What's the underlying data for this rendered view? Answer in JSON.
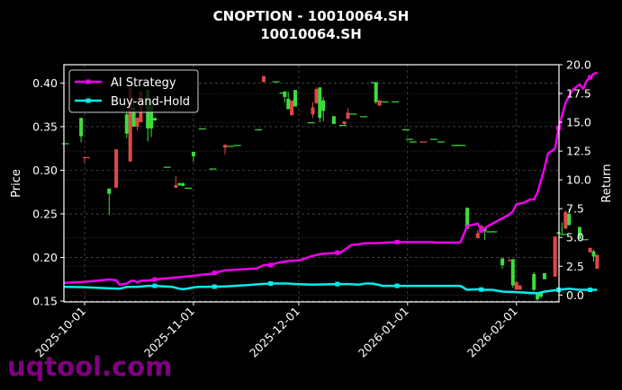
{
  "title": {
    "line1": "CNOPTION - 10010064.SH",
    "line2": "10010064.SH"
  },
  "watermark": "uqtool.com",
  "colors": {
    "background": "#000000",
    "up": "#3ddc3d",
    "down": "#e04848",
    "ai_strategy": "#ee00ee",
    "buy_and_hold": "#00eeee",
    "grid": "#555555",
    "axis": "#ffffff"
  },
  "chart_data": {
    "type": "candlestick+line",
    "title": "CNOPTION - 10010064.SH\n10010064.SH",
    "xlabel": "",
    "ylabel": "Price",
    "y2label": "Return",
    "ylim": [
      0.149,
      0.421
    ],
    "y2lim": [
      -0.6,
      20.0
    ],
    "xticks": [
      "2025-10-01",
      "2025-11-01",
      "2025-12-01",
      "2026-01-01",
      "2026-02-01"
    ],
    "yticks": [
      "0.15",
      "0.20",
      "0.25",
      "0.30",
      "0.35",
      "0.40"
    ],
    "y2ticks": [
      "0.0",
      "2.5",
      "5.0",
      "7.5",
      "10.0",
      "12.5",
      "15.0",
      "17.5",
      "20.0"
    ],
    "grid": true,
    "legend": {
      "position": "upper left",
      "entries": [
        "AI Strategy",
        "Buy-and-Hold"
      ]
    },
    "candles": [
      {
        "d": -6,
        "o": 0.331,
        "c": 0.331,
        "h": 0.331,
        "l": 0.331
      },
      {
        "d": -1,
        "o": 0.339,
        "c": 0.36,
        "h": 0.36,
        "l": 0.332
      },
      {
        "d": 0,
        "o": 0.315,
        "c": 0.314,
        "h": 0.316,
        "l": 0.308
      },
      {
        "d": 7,
        "o": 0.273,
        "c": 0.279,
        "h": 0.279,
        "l": 0.249
      },
      {
        "d": 9,
        "o": 0.324,
        "c": 0.28,
        "h": 0.324,
        "l": 0.28
      },
      {
        "d": 12,
        "o": 0.342,
        "c": 0.364,
        "h": 0.37,
        "l": 0.337
      },
      {
        "d": 13,
        "o": 0.395,
        "c": 0.31,
        "h": 0.397,
        "l": 0.31
      },
      {
        "d": 14,
        "o": 0.35,
        "c": 0.372,
        "h": 0.383,
        "l": 0.35
      },
      {
        "d": 15,
        "o": 0.36,
        "c": 0.35,
        "h": 0.361,
        "l": 0.346
      },
      {
        "d": 16,
        "o": 0.39,
        "c": 0.355,
        "h": 0.392,
        "l": 0.355
      },
      {
        "d": 18,
        "o": 0.348,
        "c": 0.392,
        "h": 0.393,
        "l": 0.333
      },
      {
        "d": 19,
        "o": 0.348,
        "c": 0.374,
        "h": 0.38,
        "l": 0.338
      },
      {
        "d": 20,
        "o": 0.357,
        "c": 0.36,
        "h": 0.36,
        "l": 0.357
      },
      {
        "d": 23,
        "o": 0.304,
        "c": 0.304,
        "h": 0.304,
        "l": 0.304
      },
      {
        "d": 26,
        "o": 0.283,
        "c": 0.28,
        "h": 0.293,
        "l": 0.28
      },
      {
        "d": 27,
        "o": 0.283,
        "c": 0.285,
        "h": 0.286,
        "l": 0.282
      },
      {
        "d": 28,
        "o": 0.282,
        "c": 0.285,
        "h": 0.286,
        "l": 0.282
      },
      {
        "d": 29,
        "o": 0.28,
        "c": 0.28,
        "h": 0.28,
        "l": 0.28
      },
      {
        "d": 31,
        "o": 0.316,
        "c": 0.321,
        "h": 0.321,
        "l": 0.31
      },
      {
        "d": 33,
        "o": 0.348,
        "c": 0.348,
        "h": 0.348,
        "l": 0.348
      },
      {
        "d": 36,
        "o": 0.302,
        "c": 0.302,
        "h": 0.302,
        "l": 0.302
      },
      {
        "d": 40,
        "o": 0.329,
        "c": 0.326,
        "h": 0.33,
        "l": 0.318
      },
      {
        "d": 41,
        "o": 0.328,
        "c": 0.328,
        "h": 0.328,
        "l": 0.328
      },
      {
        "d": 43,
        "o": 0.329,
        "c": 0.329,
        "h": 0.329,
        "l": 0.329
      },
      {
        "d": 49,
        "o": 0.347,
        "c": 0.347,
        "h": 0.347,
        "l": 0.347
      },
      {
        "d": 51,
        "o": 0.408,
        "c": 0.401,
        "h": 0.408,
        "l": 0.401
      },
      {
        "d": 54,
        "o": 0.402,
        "c": 0.402,
        "h": 0.402,
        "l": 0.402
      },
      {
        "d": 56,
        "o": 0.389,
        "c": 0.389,
        "h": 0.389,
        "l": 0.389
      },
      {
        "d": 57,
        "o": 0.384,
        "c": 0.39,
        "h": 0.391,
        "l": 0.378
      },
      {
        "d": 58,
        "o": 0.37,
        "c": 0.382,
        "h": 0.39,
        "l": 0.37
      },
      {
        "d": 59,
        "o": 0.38,
        "c": 0.363,
        "h": 0.38,
        "l": 0.363
      },
      {
        "d": 60,
        "o": 0.373,
        "c": 0.392,
        "h": 0.392,
        "l": 0.373
      },
      {
        "d": 64,
        "o": 0.355,
        "c": 0.355,
        "h": 0.355,
        "l": 0.355
      },
      {
        "d": 65,
        "o": 0.372,
        "c": 0.364,
        "h": 0.378,
        "l": 0.36
      },
      {
        "d": 66,
        "o": 0.393,
        "c": 0.377,
        "h": 0.395,
        "l": 0.376
      },
      {
        "d": 67,
        "o": 0.36,
        "c": 0.395,
        "h": 0.395,
        "l": 0.355
      },
      {
        "d": 68,
        "o": 0.368,
        "c": 0.38,
        "h": 0.384,
        "l": 0.356
      },
      {
        "d": 71,
        "o": 0.353,
        "c": 0.362,
        "h": 0.362,
        "l": 0.353
      },
      {
        "d": 73,
        "o": 0.352,
        "c": 0.352,
        "h": 0.352,
        "l": 0.352
      },
      {
        "d": 74,
        "o": 0.356,
        "c": 0.353,
        "h": 0.356,
        "l": 0.352
      },
      {
        "d": 75,
        "o": 0.366,
        "c": 0.359,
        "h": 0.371,
        "l": 0.359
      },
      {
        "d": 76,
        "o": 0.365,
        "c": 0.365,
        "h": 0.365,
        "l": 0.365
      },
      {
        "d": 79,
        "o": 0.362,
        "c": 0.362,
        "h": 0.362,
        "l": 0.362
      },
      {
        "d": 82,
        "o": 0.401,
        "c": 0.401,
        "h": 0.401,
        "l": 0.401
      },
      {
        "d": 83,
        "o": 0.378,
        "c": 0.4,
        "h": 0.401,
        "l": 0.376
      },
      {
        "d": 84,
        "o": 0.38,
        "c": 0.374,
        "h": 0.381,
        "l": 0.374
      },
      {
        "d": 85,
        "o": 0.379,
        "c": 0.379,
        "h": 0.379,
        "l": 0.379
      },
      {
        "d": 88,
        "o": 0.379,
        "c": 0.379,
        "h": 0.379,
        "l": 0.379
      },
      {
        "d": 91,
        "o": 0.347,
        "c": 0.347,
        "h": 0.347,
        "l": 0.347
      },
      {
        "d": 92,
        "o": 0.336,
        "c": 0.336,
        "h": 0.336,
        "l": 0.336
      },
      {
        "d": 93,
        "o": 0.333,
        "c": 0.333,
        "h": 0.333,
        "l": 0.333
      },
      {
        "d": 96,
        "o": 0.333,
        "c": 0.332,
        "h": 0.333,
        "l": 0.332
      },
      {
        "d": 99,
        "o": 0.336,
        "c": 0.336,
        "h": 0.336,
        "l": 0.336
      },
      {
        "d": 101,
        "o": 0.333,
        "c": 0.333,
        "h": 0.333,
        "l": 0.333
      },
      {
        "d": 105,
        "o": 0.329,
        "c": 0.329,
        "h": 0.329,
        "l": 0.329
      },
      {
        "d": 106,
        "o": 0.329,
        "c": 0.329,
        "h": 0.329,
        "l": 0.329
      },
      {
        "d": 107,
        "o": 0.329,
        "c": 0.329,
        "h": 0.329,
        "l": 0.329
      },
      {
        "d": 109,
        "o": 0.233,
        "c": 0.257,
        "h": 0.257,
        "l": 0.233
      },
      {
        "d": 112,
        "o": 0.228,
        "c": 0.222,
        "h": 0.232,
        "l": 0.222
      },
      {
        "d": 113,
        "o": 0.236,
        "c": 0.229,
        "h": 0.238,
        "l": 0.229
      },
      {
        "d": 114,
        "o": 0.23,
        "c": 0.234,
        "h": 0.234,
        "l": 0.22
      },
      {
        "d": 115,
        "o": 0.23,
        "c": 0.23,
        "h": 0.23,
        "l": 0.23
      },
      {
        "d": 116,
        "o": 0.23,
        "c": 0.23,
        "h": 0.23,
        "l": 0.23
      },
      {
        "d": 119,
        "o": 0.191,
        "c": 0.199,
        "h": 0.199,
        "l": 0.187
      },
      {
        "d": 121,
        "o": 0.197,
        "c": 0.196,
        "h": 0.199,
        "l": 0.196
      },
      {
        "d": 122,
        "o": 0.168,
        "c": 0.198,
        "h": 0.198,
        "l": 0.165
      },
      {
        "d": 123,
        "o": 0.172,
        "c": 0.163,
        "h": 0.172,
        "l": 0.163
      },
      {
        "d": 124,
        "o": 0.168,
        "c": 0.163,
        "h": 0.168,
        "l": 0.163
      },
      {
        "d": 127,
        "o": 0.159,
        "c": 0.159,
        "h": 0.159,
        "l": 0.159
      },
      {
        "d": 128,
        "o": 0.163,
        "c": 0.181,
        "h": 0.183,
        "l": 0.161
      },
      {
        "d": 129,
        "o": 0.152,
        "c": 0.158,
        "h": 0.158,
        "l": 0.15
      },
      {
        "d": 130,
        "o": 0.155,
        "c": 0.159,
        "h": 0.16,
        "l": 0.153
      },
      {
        "d": 131,
        "o": 0.175,
        "c": 0.182,
        "h": 0.182,
        "l": 0.175
      },
      {
        "d": 134,
        "o": 0.224,
        "c": 0.178,
        "h": 0.224,
        "l": 0.178
      },
      {
        "d": 135,
        "o": 0.227,
        "c": 0.229,
        "h": 0.229,
        "l": 0.227
      },
      {
        "d": 136,
        "o": 0.227,
        "c": 0.227,
        "h": 0.24,
        "l": 0.227
      },
      {
        "d": 137,
        "o": 0.252,
        "c": 0.233,
        "h": 0.254,
        "l": 0.233
      },
      {
        "d": 138,
        "o": 0.237,
        "c": 0.25,
        "h": 0.256,
        "l": 0.237
      },
      {
        "d": 141,
        "o": 0.221,
        "c": 0.235,
        "h": 0.235,
        "l": 0.221
      },
      {
        "d": 142,
        "o": 0.221,
        "c": 0.221,
        "h": 0.221,
        "l": 0.221
      },
      {
        "d": 144,
        "o": 0.211,
        "c": 0.206,
        "h": 0.211,
        "l": 0.206
      },
      {
        "d": 145,
        "o": 0.201,
        "c": 0.207,
        "h": 0.209,
        "l": 0.195
      },
      {
        "d": 146,
        "o": 0.203,
        "c": 0.187,
        "h": 0.203,
        "l": 0.187
      }
    ],
    "series": [
      {
        "name": "AI Strategy",
        "color": "#ee00ee",
        "marker_days": [
          20,
          37,
          53,
          72,
          89,
          113,
          135,
          144
        ],
        "points": [
          [
            -6,
            1.05
          ],
          [
            0,
            1.15
          ],
          [
            7,
            1.35
          ],
          [
            9,
            1.3
          ],
          [
            10,
            0.9
          ],
          [
            12,
            1.0
          ],
          [
            13,
            1.2
          ],
          [
            14,
            1.25
          ],
          [
            15,
            1.1
          ],
          [
            16,
            1.25
          ],
          [
            18,
            1.25
          ],
          [
            20,
            1.35
          ],
          [
            30,
            1.65
          ],
          [
            33,
            1.75
          ],
          [
            36,
            1.85
          ],
          [
            40,
            2.15
          ],
          [
            49,
            2.3
          ],
          [
            51,
            2.6
          ],
          [
            53,
            2.6
          ],
          [
            55,
            2.8
          ],
          [
            58,
            2.95
          ],
          [
            61,
            3.0
          ],
          [
            63,
            3.2
          ],
          [
            65,
            3.4
          ],
          [
            67,
            3.55
          ],
          [
            73,
            3.7
          ],
          [
            76,
            4.35
          ],
          [
            78,
            4.4
          ],
          [
            80,
            4.5
          ],
          [
            83,
            4.5
          ],
          [
            89,
            4.6
          ],
          [
            99,
            4.6
          ],
          [
            100,
            4.55
          ],
          [
            107,
            4.55
          ],
          [
            109,
            6.0
          ],
          [
            112,
            6.2
          ],
          [
            113,
            5.6
          ],
          [
            115,
            6.0
          ],
          [
            118,
            6.5
          ],
          [
            121,
            7.0
          ],
          [
            122,
            7.25
          ],
          [
            123,
            7.9
          ],
          [
            125,
            8.0
          ],
          [
            127,
            8.3
          ],
          [
            128,
            8.3
          ],
          [
            129,
            8.9
          ],
          [
            131,
            11.0
          ],
          [
            132,
            12.3
          ],
          [
            134,
            12.7
          ],
          [
            135,
            14.5
          ],
          [
            137,
            16.7
          ],
          [
            139,
            17.8
          ],
          [
            141,
            18.3
          ],
          [
            142,
            17.9
          ],
          [
            143,
            18.6
          ],
          [
            145,
            19.2
          ],
          [
            146,
            19.3
          ]
        ]
      },
      {
        "name": "Buy-and-Hold",
        "color": "#00eeee",
        "marker_days": [
          20,
          37,
          53,
          72,
          89,
          113,
          135,
          144
        ],
        "points": [
          [
            -6,
            0.72
          ],
          [
            0,
            0.68
          ],
          [
            10,
            0.55
          ],
          [
            12,
            0.7
          ],
          [
            15,
            0.7
          ],
          [
            18,
            0.8
          ],
          [
            20,
            0.8
          ],
          [
            25,
            0.7
          ],
          [
            27,
            0.55
          ],
          [
            28,
            0.5
          ],
          [
            30,
            0.6
          ],
          [
            32,
            0.7
          ],
          [
            36,
            0.72
          ],
          [
            40,
            0.75
          ],
          [
            46,
            0.85
          ],
          [
            50,
            0.95
          ],
          [
            53,
            1.0
          ],
          [
            56,
            1.0
          ],
          [
            58,
            1.0
          ],
          [
            60,
            0.95
          ],
          [
            65,
            0.9
          ],
          [
            72,
            0.95
          ],
          [
            75,
            0.95
          ],
          [
            78,
            0.9
          ],
          [
            80,
            1.0
          ],
          [
            82,
            1.0
          ],
          [
            85,
            0.8
          ],
          [
            89,
            0.8
          ],
          [
            100,
            0.8
          ],
          [
            107,
            0.8
          ],
          [
            109,
            0.45
          ],
          [
            112,
            0.5
          ],
          [
            114,
            0.45
          ],
          [
            116,
            0.45
          ],
          [
            119,
            0.3
          ],
          [
            123,
            0.25
          ],
          [
            129,
            0.15
          ],
          [
            131,
            0.3
          ],
          [
            135,
            0.45
          ],
          [
            138,
            0.55
          ],
          [
            141,
            0.45
          ],
          [
            144,
            0.45
          ],
          [
            146,
            0.45
          ]
        ]
      }
    ]
  }
}
